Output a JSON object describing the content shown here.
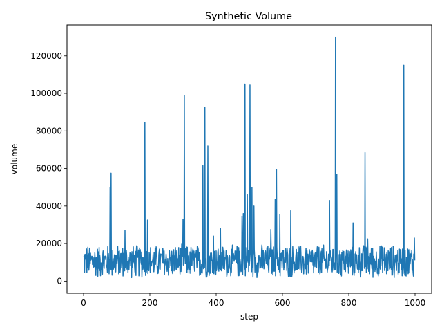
{
  "chart_data": {
    "type": "line",
    "title": "Synthetic Volume",
    "xlabel": "step",
    "ylabel": "volume",
    "xlim": [
      -50,
      1050
    ],
    "ylim": [
      -6500,
      136500
    ],
    "xticks": [
      0,
      200,
      400,
      600,
      800,
      1000
    ],
    "yticks": [
      0,
      20000,
      40000,
      60000,
      80000,
      100000,
      120000
    ],
    "xtick_labels": [
      "0",
      "200",
      "400",
      "600",
      "800",
      "1000"
    ],
    "ytick_labels": [
      "0",
      "20000",
      "40000",
      "60000",
      "80000",
      "100000",
      "120000"
    ],
    "line_color": "#1f77b4",
    "grid": false,
    "n_points": 1000,
    "baseline_range": [
      1000,
      20000
    ],
    "spikes": [
      {
        "x": 8,
        "y": 15500
      },
      {
        "x": 80,
        "y": 50000
      },
      {
        "x": 83,
        "y": 57500
      },
      {
        "x": 125,
        "y": 27000
      },
      {
        "x": 185,
        "y": 84500
      },
      {
        "x": 193,
        "y": 32500
      },
      {
        "x": 300,
        "y": 33000
      },
      {
        "x": 304,
        "y": 99000
      },
      {
        "x": 360,
        "y": 61500
      },
      {
        "x": 366,
        "y": 92500
      },
      {
        "x": 375,
        "y": 72000
      },
      {
        "x": 392,
        "y": 24000
      },
      {
        "x": 413,
        "y": 28000
      },
      {
        "x": 478,
        "y": 34500
      },
      {
        "x": 482,
        "y": 36000
      },
      {
        "x": 487,
        "y": 105000
      },
      {
        "x": 494,
        "y": 46000
      },
      {
        "x": 502,
        "y": 104500
      },
      {
        "x": 508,
        "y": 50000
      },
      {
        "x": 514,
        "y": 40000
      },
      {
        "x": 565,
        "y": 27500
      },
      {
        "x": 578,
        "y": 43500
      },
      {
        "x": 582,
        "y": 59500
      },
      {
        "x": 592,
        "y": 35500
      },
      {
        "x": 625,
        "y": 37500
      },
      {
        "x": 742,
        "y": 43000
      },
      {
        "x": 760,
        "y": 130000
      },
      {
        "x": 764,
        "y": 57000
      },
      {
        "x": 813,
        "y": 31000
      },
      {
        "x": 849,
        "y": 68500
      },
      {
        "x": 857,
        "y": 22500
      },
      {
        "x": 966,
        "y": 115000
      },
      {
        "x": 998,
        "y": 23000
      }
    ]
  }
}
